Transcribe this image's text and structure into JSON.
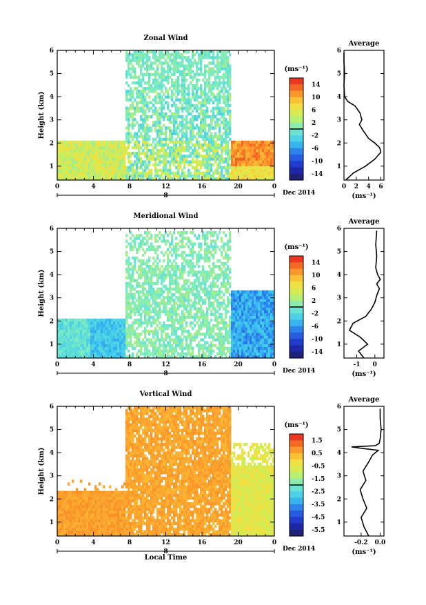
{
  "chart_data": [
    {
      "type": "heatmap",
      "title": "Zonal Wind",
      "ylabel": "Height (km)",
      "xlabel": "",
      "x_ticks": [
        "0",
        "4",
        "8",
        "12",
        "16",
        "20",
        "0"
      ],
      "date_label": "8",
      "month_label": "Dec 2014",
      "ylim": [
        0.4,
        6
      ],
      "y_ticks": [
        "1",
        "2",
        "3",
        "4",
        "5",
        "6"
      ],
      "colorbar": {
        "unit": "(ms⁻¹)",
        "ticks": [
          "14",
          "10",
          "6",
          "2",
          "-2",
          "-6",
          "-10",
          "-14"
        ],
        "range": [
          -16,
          16
        ]
      },
      "profile": {
        "title": "Average",
        "xlabel": "(ms⁻¹)",
        "x_ticks": [
          "0",
          "2",
          "4",
          "6"
        ],
        "xlim": [
          0,
          6.5
        ],
        "heights": [
          0.4,
          0.7,
          1.0,
          1.3,
          1.6,
          1.8,
          2.0,
          2.2,
          2.5,
          2.8,
          3.0,
          3.3,
          3.6,
          3.8,
          4.0,
          4.5,
          5.0,
          5.5,
          5.9
        ],
        "values": [
          0.3,
          1.5,
          3.5,
          5.0,
          6.0,
          5.8,
          5.0,
          4.0,
          3.2,
          2.5,
          2.9,
          2.6,
          1.8,
          0.6,
          0.1,
          0.0,
          0.1,
          0.0,
          0.0
        ]
      }
    },
    {
      "type": "heatmap",
      "title": "Meridional Wind",
      "ylabel": "Height (km)",
      "xlabel": "",
      "x_ticks": [
        "0",
        "4",
        "8",
        "12",
        "16",
        "20",
        "0"
      ],
      "date_label": "8",
      "month_label": "Dec 2014",
      "ylim": [
        0.4,
        6
      ],
      "y_ticks": [
        "1",
        "2",
        "3",
        "4",
        "5",
        "6"
      ],
      "colorbar": {
        "unit": "(ms⁻¹)",
        "ticks": [
          "14",
          "10",
          "6",
          "2",
          "-2",
          "-6",
          "-10",
          "-14"
        ],
        "range": [
          -16,
          16
        ]
      },
      "profile": {
        "title": "Average",
        "xlabel": "(ms⁻¹)",
        "x_ticks": [
          "-1",
          "0"
        ],
        "xlim": [
          -1.7,
          0.5
        ],
        "heights": [
          0.4,
          0.7,
          1.0,
          1.3,
          1.6,
          1.9,
          2.2,
          2.5,
          2.8,
          3.1,
          3.4,
          3.6,
          3.8,
          4.0,
          4.3,
          4.8,
          5.3,
          5.9
        ],
        "values": [
          -0.6,
          -0.9,
          -0.4,
          -0.8,
          -1.4,
          -1.2,
          -0.5,
          -0.2,
          0.0,
          0.1,
          0.25,
          0.1,
          0.3,
          0.15,
          0.05,
          0.1,
          0.05,
          0.1
        ]
      }
    },
    {
      "type": "heatmap",
      "title": "Vertical Wind",
      "ylabel": "Height (km)",
      "xlabel": "Local Time",
      "x_ticks": [
        "0",
        "4",
        "8",
        "12",
        "16",
        "20",
        "0"
      ],
      "date_label": "8",
      "month_label": "Dec 2014",
      "ylim": [
        0.4,
        6
      ],
      "y_ticks": [
        "1",
        "2",
        "3",
        "4",
        "5",
        "6"
      ],
      "colorbar": {
        "unit": "(ms⁻¹)",
        "ticks": [
          "1.5",
          "0.5",
          "-0.5",
          "-1.5",
          "-2.5",
          "-3.5",
          "-4.5",
          "-5.5"
        ],
        "range": [
          -6,
          2
        ]
      },
      "profile": {
        "title": "Average",
        "xlabel": "(ms⁻¹)",
        "x_ticks": [
          "-0.2",
          "0.0"
        ],
        "xlim": [
          -0.38,
          0.04
        ],
        "heights": [
          0.4,
          0.8,
          1.2,
          1.6,
          2.0,
          2.4,
          2.8,
          3.2,
          3.6,
          3.9,
          4.1,
          4.2,
          4.25,
          4.3,
          4.4,
          4.6,
          5.0,
          5.5,
          5.9
        ],
        "values": [
          -0.12,
          -0.17,
          -0.2,
          -0.14,
          -0.18,
          -0.21,
          -0.15,
          -0.18,
          -0.12,
          -0.08,
          -0.02,
          -0.22,
          -0.3,
          -0.05,
          -0.01,
          0.0,
          0.01,
          0.0,
          0.0
        ]
      }
    }
  ]
}
